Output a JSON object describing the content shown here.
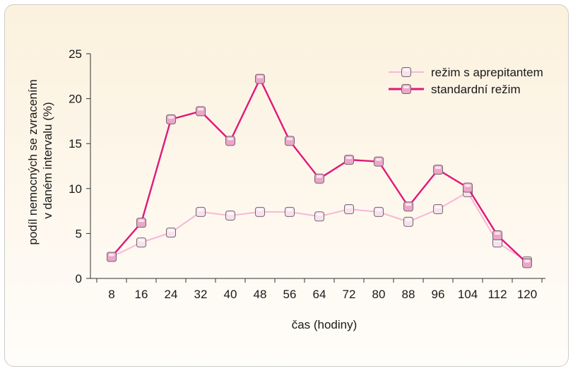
{
  "chart_data": {
    "type": "line",
    "title": "",
    "xlabel": "čas (hodiny)",
    "ylabel_lines": [
      "podíl nemocných se zvracením",
      "v daném intervalu (%)"
    ],
    "ylim": [
      0,
      25
    ],
    "yticks": [
      "0",
      "5",
      "10",
      "15",
      "20",
      "25"
    ],
    "ytick_values": [
      0,
      5,
      10,
      15,
      20,
      25
    ],
    "categories": [
      "8",
      "16",
      "24",
      "32",
      "40",
      "48",
      "56",
      "64",
      "72",
      "80",
      "88",
      "96",
      "104",
      "112",
      "120"
    ],
    "grid": false,
    "legend_position": "top-right",
    "series": [
      {
        "name": "režim s aprepitantem",
        "color": "#f7b8d6",
        "marker_fill": "#f4e3ec",
        "values": [
          2.4,
          4.0,
          5.1,
          7.4,
          7.0,
          7.4,
          7.4,
          6.9,
          7.7,
          7.4,
          6.3,
          7.7,
          9.6,
          4.0,
          1.9
        ]
      },
      {
        "name": "standardní režim",
        "color": "#e0187a",
        "marker_fill": "#eaa7c8",
        "values": [
          2.4,
          6.2,
          17.7,
          18.6,
          15.3,
          22.2,
          15.3,
          11.1,
          13.2,
          13.0,
          8.0,
          12.1,
          10.1,
          4.8,
          1.7
        ]
      }
    ]
  }
}
